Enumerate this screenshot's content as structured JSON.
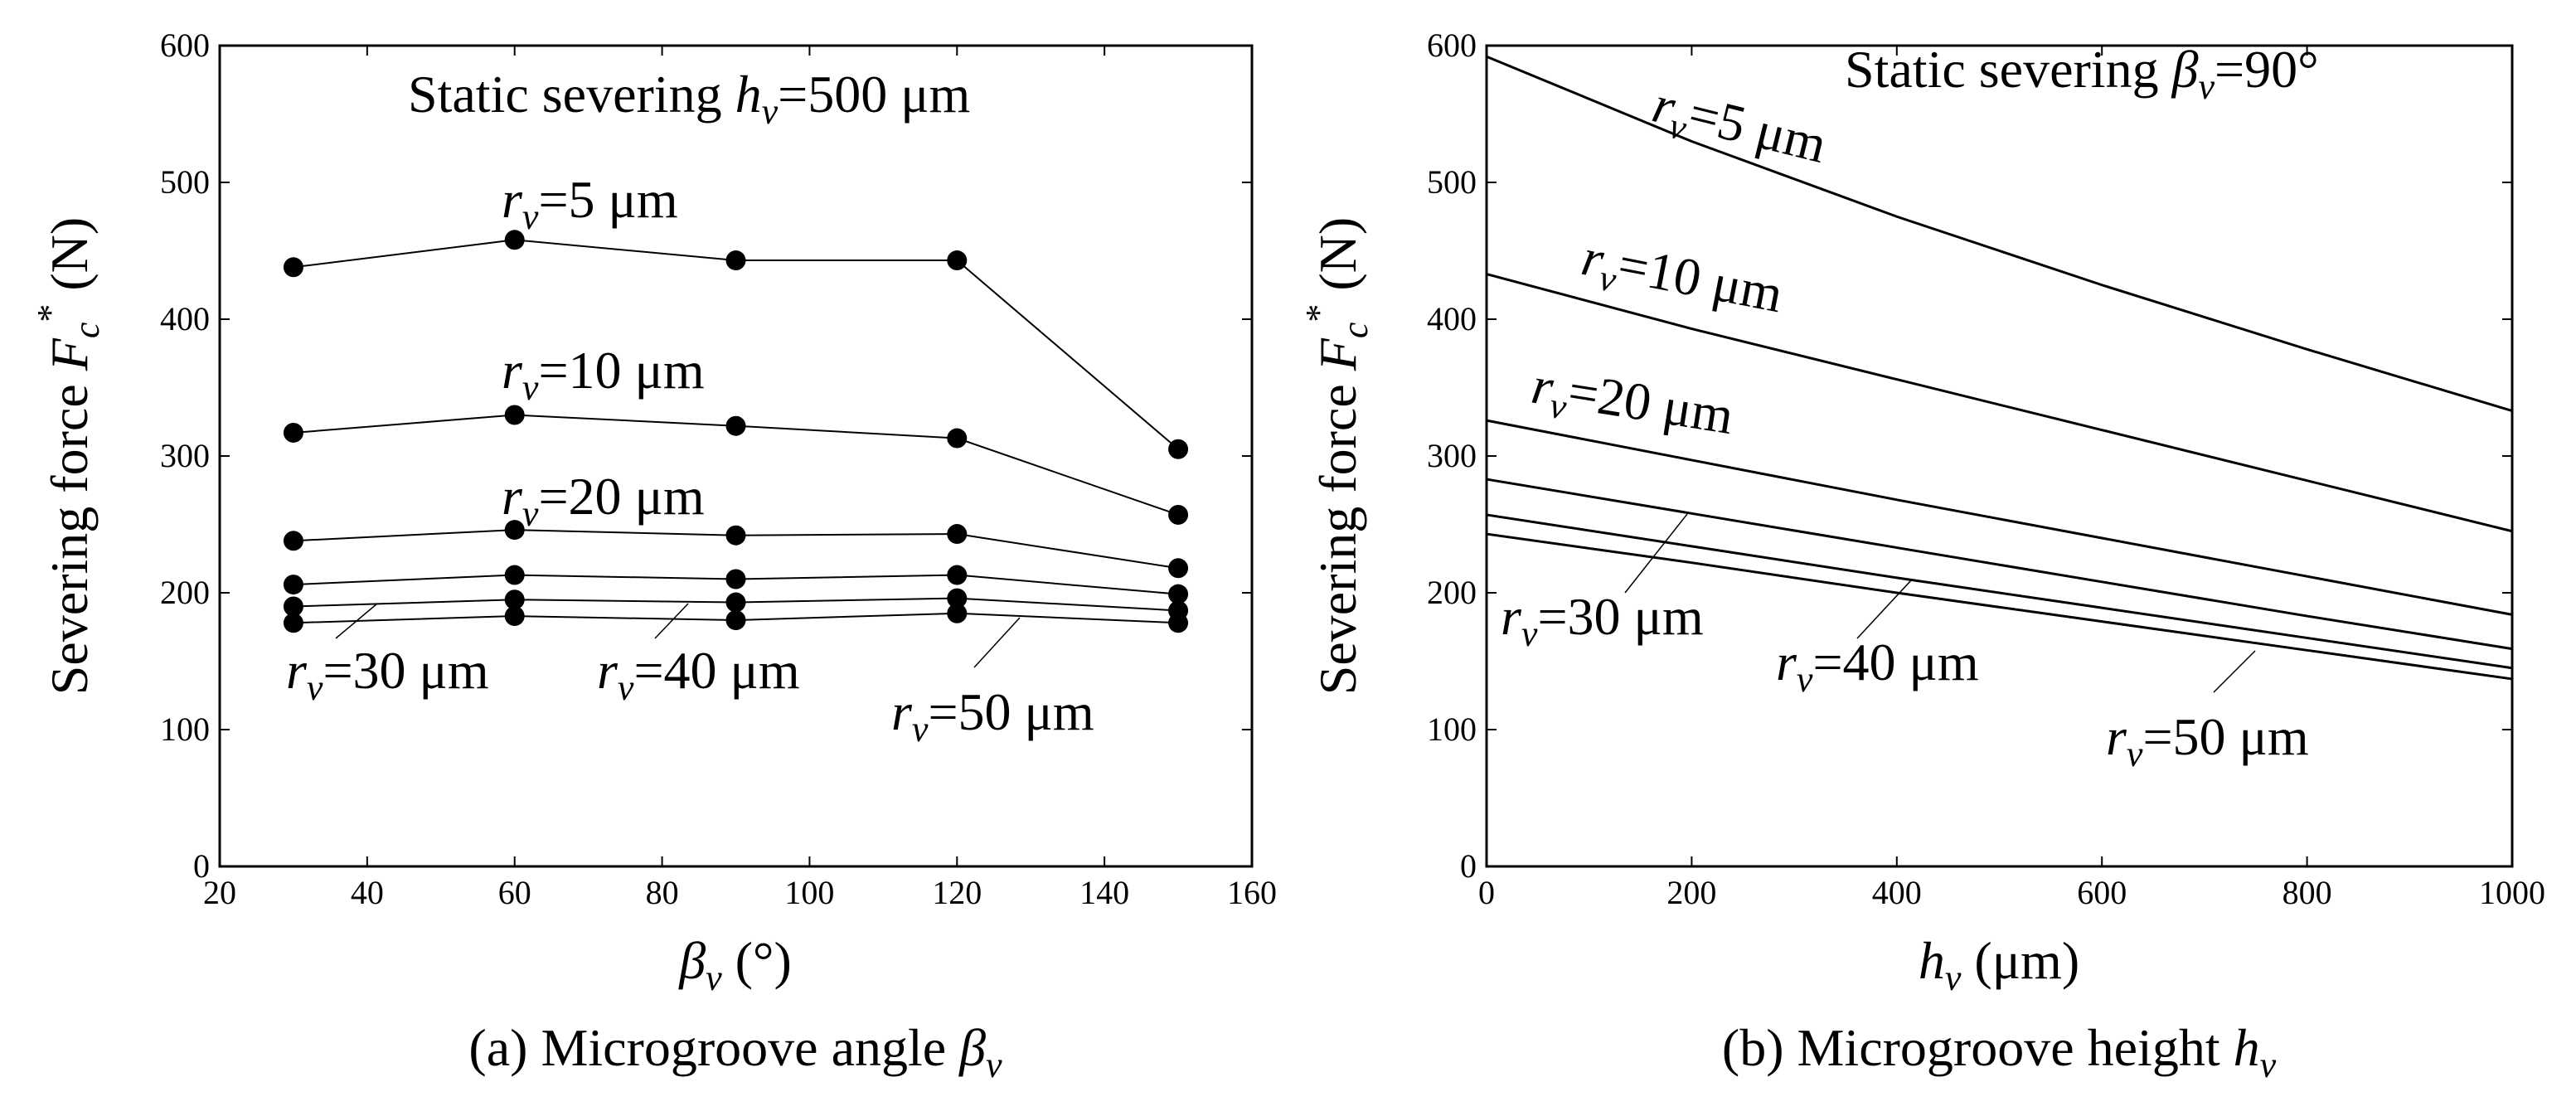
{
  "chart_data": [
    {
      "type": "line",
      "panel": "a",
      "caption_prefix": "(a) Microgroove angle ",
      "caption_symbol": "β",
      "caption_sub": "v",
      "title_prefix": "Static severing  ",
      "title_symbol": "h",
      "title_sub": "v",
      "title_value": "=500 μm",
      "xlabel_symbol": "β",
      "xlabel_sub": "v",
      "xlabel_unit": " (°)",
      "ylabel_prefix": "Severing force ",
      "ylabel_symbol": "F",
      "ylabel_sub": "c",
      "ylabel_sup": "*",
      "ylabel_unit": " (N)",
      "xlim": [
        20,
        160
      ],
      "ylim": [
        0,
        600
      ],
      "xticks": [
        20,
        40,
        60,
        80,
        100,
        120,
        140,
        160
      ],
      "yticks": [
        0,
        100,
        200,
        300,
        400,
        500,
        600
      ],
      "grid": false,
      "x": [
        30,
        60,
        90,
        120,
        150
      ],
      "series": [
        {
          "name": "rv=5 μm",
          "values": [
            438,
            458,
            443,
            443,
            305
          ]
        },
        {
          "name": "rv=10 μm",
          "values": [
            317,
            330,
            322,
            313,
            257
          ]
        },
        {
          "name": "rv=20 μm",
          "values": [
            238,
            246,
            242,
            243,
            218
          ]
        },
        {
          "name": "rv=30 μm",
          "values": [
            206,
            213,
            210,
            213,
            199
          ]
        },
        {
          "name": "rv=40 μm",
          "values": [
            190,
            195,
            193,
            196,
            187
          ]
        },
        {
          "name": "rv=50 μm",
          "values": [
            178,
            183,
            180,
            185,
            178
          ]
        }
      ],
      "labels": [
        {
          "r": "r",
          "sub": "v",
          "text": "=5 μm"
        },
        {
          "r": "r",
          "sub": "v",
          "text": "=10 μm"
        },
        {
          "r": "r",
          "sub": "v",
          "text": "=20 μm"
        },
        {
          "r": "r",
          "sub": "v",
          "text": "=30 μm"
        },
        {
          "r": "r",
          "sub": "v",
          "text": "=40 μm"
        },
        {
          "r": "r",
          "sub": "v",
          "text": "=50 μm"
        }
      ]
    },
    {
      "type": "line",
      "panel": "b",
      "caption_prefix": "(b) Microgroove height ",
      "caption_symbol": "h",
      "caption_sub": "v",
      "title_prefix": "Static severing  ",
      "title_symbol": "β",
      "title_sub": "v",
      "title_value": "=90°",
      "xlabel_symbol": "h",
      "xlabel_sub": "v",
      "xlabel_unit": " (μm)",
      "ylabel_prefix": "Severing force ",
      "ylabel_symbol": "F",
      "ylabel_sub": "c",
      "ylabel_sup": "*",
      "ylabel_unit": " (N)",
      "xlim": [
        0,
        1000
      ],
      "ylim": [
        0,
        600
      ],
      "xticks": [
        0,
        200,
        400,
        600,
        800,
        1000
      ],
      "yticks": [
        0,
        100,
        200,
        300,
        400,
        500,
        600
      ],
      "grid": false,
      "x": [
        0,
        200,
        400,
        600,
        800,
        1000
      ],
      "series": [
        {
          "name": "rv=5 μm",
          "values": [
            592,
            530,
            475,
            425,
            378,
            333
          ]
        },
        {
          "name": "rv=10 μm",
          "values": [
            433,
            393,
            356,
            319,
            282,
            245
          ]
        },
        {
          "name": "rv=20 μm",
          "values": [
            326,
            297,
            268,
            240,
            212,
            184
          ]
        },
        {
          "name": "rv=30 μm",
          "values": [
            283,
            258,
            233,
            208,
            183,
            159
          ]
        },
        {
          "name": "rv=40 μm",
          "values": [
            257,
            234,
            211,
            189,
            167,
            145
          ]
        },
        {
          "name": "rv=50 μm",
          "values": [
            243,
            222,
            200,
            179,
            158,
            137
          ]
        }
      ],
      "labels": [
        {
          "r": "r",
          "sub": "v",
          "text": "=5 μm"
        },
        {
          "r": "r",
          "sub": "v",
          "text": "=10 μm"
        },
        {
          "r": "r",
          "sub": "v",
          "text": "=20 μm"
        },
        {
          "r": "r",
          "sub": "v",
          "text": "=30 μm"
        },
        {
          "r": "r",
          "sub": "v",
          "text": "=40 μm"
        },
        {
          "r": "r",
          "sub": "v",
          "text": "=50 μm"
        }
      ]
    }
  ]
}
